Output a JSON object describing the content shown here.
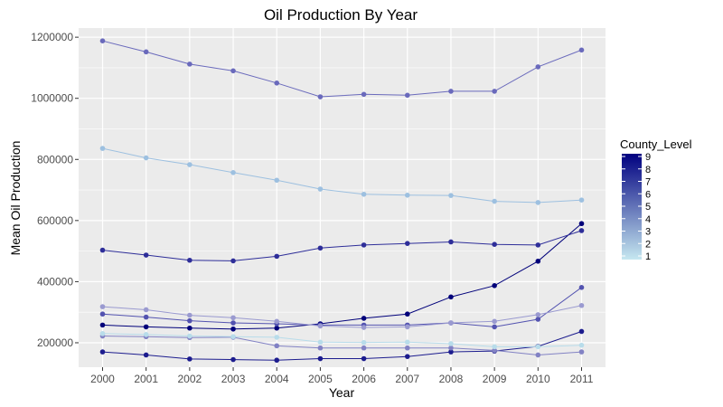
{
  "chart_data": {
    "type": "line",
    "title": "Oil Production By Year",
    "xlabel": "Year",
    "ylabel": "Mean Oil Production",
    "x": [
      2000,
      2001,
      2002,
      2003,
      2004,
      2005,
      2006,
      2007,
      2008,
      2009,
      2010,
      2011
    ],
    "x_tick_labels": [
      "2000",
      "2001",
      "2002",
      "2003",
      "2004",
      "2005",
      "2006",
      "2007",
      "2008",
      "2009",
      "2010",
      "2011"
    ],
    "xlim": [
      1999.45,
      2011.55
    ],
    "ylim": [
      120000,
      1230000
    ],
    "y_ticks": [
      200000,
      400000,
      600000,
      800000,
      1000000,
      1200000
    ],
    "y_tick_labels": [
      "200000",
      "400000",
      "600000",
      "800000",
      "1000000",
      "1200000"
    ],
    "grid": true,
    "panel_background": "#ebebeb",
    "grid_color": "#ffffff",
    "legend": {
      "title": "County_Level",
      "placement": "right",
      "levels": [
        "9",
        "8",
        "7",
        "6",
        "5",
        "4",
        "3",
        "2",
        "1"
      ],
      "gradient": [
        "#000080",
        "#c6e8f0"
      ]
    },
    "series": [
      {
        "level": 9,
        "color": "#00007a",
        "values": [
          258000,
          252000,
          248000,
          245000,
          248000,
          262000,
          280000,
          294000,
          350000,
          387000,
          467000,
          590000
        ]
      },
      {
        "level": 8,
        "color": "#1c1c8e",
        "values": [
          170000,
          160000,
          147000,
          145000,
          143000,
          148000,
          148000,
          155000,
          170000,
          173000,
          188000,
          237000
        ]
      },
      {
        "level": 7,
        "color": "#2e2e99",
        "values": [
          503000,
          487000,
          470000,
          468000,
          483000,
          510000,
          520000,
          525000,
          530000,
          522000,
          520000,
          567000
        ]
      },
      {
        "level": 6,
        "color": "#5353b0",
        "values": [
          294000,
          284000,
          272000,
          265000,
          262000,
          258000,
          258000,
          258000,
          265000,
          252000,
          277000,
          381000
        ]
      },
      {
        "level": 5,
        "color": "#6a6abc",
        "values": [
          1188000,
          1152000,
          1112000,
          1090000,
          1050000,
          1005000,
          1013000,
          1010000,
          1023000,
          1023000,
          1103000,
          1158000
        ]
      },
      {
        "level": 4,
        "color": "#8282c4",
        "values": [
          222000,
          220000,
          217000,
          218000,
          190000,
          183000,
          183000,
          183000,
          183000,
          175000,
          160000,
          170000
        ]
      },
      {
        "level": 3,
        "color": "#9a9ad0",
        "values": [
          318000,
          308000,
          290000,
          282000,
          270000,
          255000,
          250000,
          252000,
          265000,
          270000,
          292000,
          322000
        ]
      },
      {
        "level": 2,
        "color": "#9dc0e0",
        "values": [
          836000,
          805000,
          783000,
          757000,
          732000,
          703000,
          686000,
          683000,
          682000,
          663000,
          659000,
          667000
        ]
      },
      {
        "level": 1,
        "color": "#b8dcea",
        "values": [
          230000,
          227000,
          222000,
          220000,
          218000,
          202000,
          201000,
          202000,
          197000,
          187000,
          187000,
          192000
        ]
      }
    ]
  }
}
